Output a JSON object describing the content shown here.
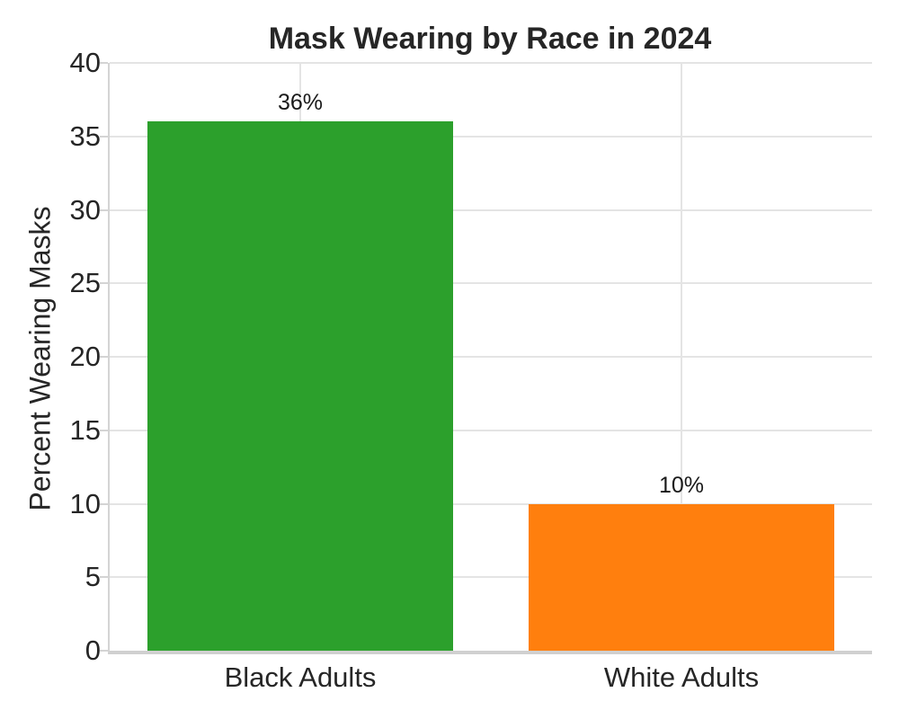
{
  "chart_data": {
    "type": "bar",
    "title": "Mask Wearing by Race in 2024",
    "xlabel": "",
    "ylabel": "Percent Wearing Masks",
    "categories": [
      "Black Adults",
      "White Adults"
    ],
    "values": [
      36,
      10
    ],
    "value_labels": [
      "36%",
      "10%"
    ],
    "bar_colors": [
      "#2ca02c",
      "#ff7f0e"
    ],
    "ylim": [
      0,
      40
    ],
    "yticks": [
      0,
      5,
      10,
      15,
      20,
      25,
      30,
      35,
      40
    ],
    "grid": true,
    "grid_axes": "both",
    "legend": "none",
    "style": {
      "grid_color": "#e4e4e4",
      "spine_color": "#d0d0d0",
      "text_color": "#262626",
      "background_color": "#ffffff"
    }
  }
}
